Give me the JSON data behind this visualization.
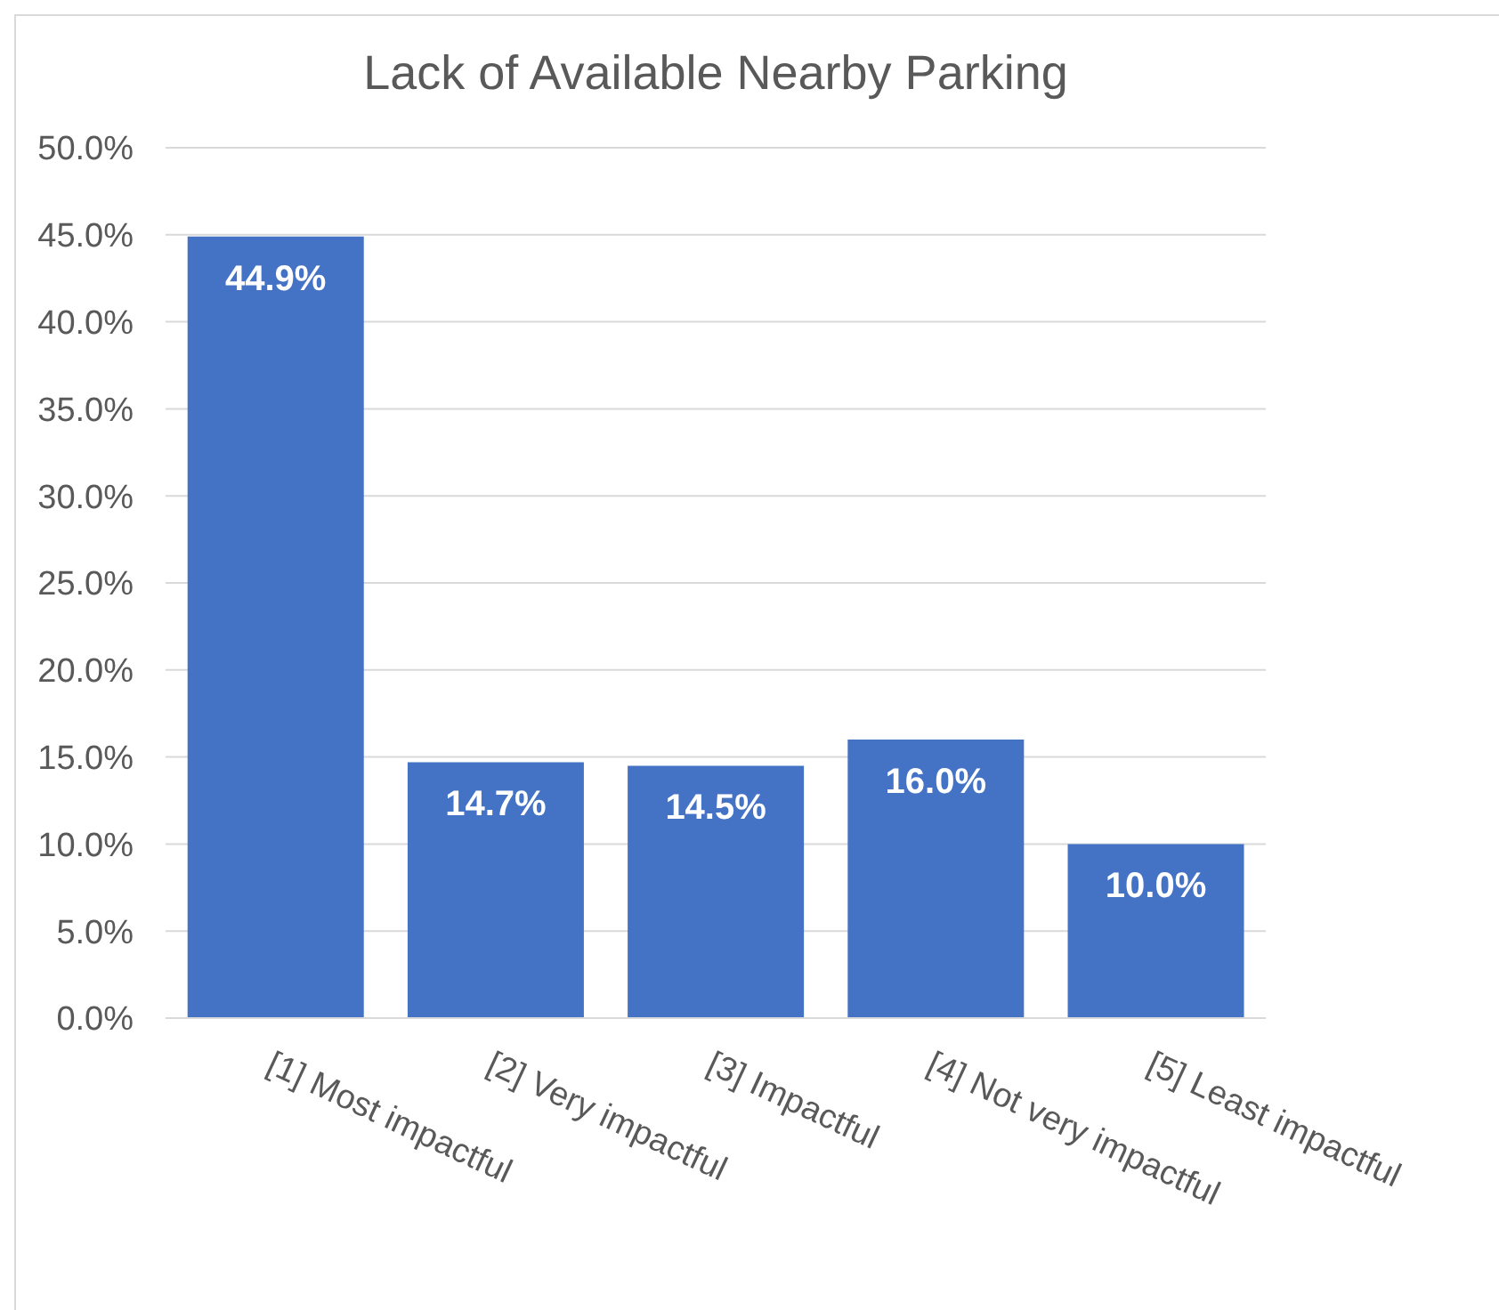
{
  "chart_data": {
    "type": "bar",
    "title": "Lack of Available Nearby Parking",
    "categories": [
      "[1] Most impactful",
      "[2] Very impactful",
      "[3] Impactful",
      "[4] Not very impactful",
      "[5] Least impactful"
    ],
    "values": [
      44.9,
      14.7,
      14.5,
      16.0,
      10.0
    ],
    "value_labels": [
      "44.9%",
      "14.7%",
      "14.5%",
      "16.0%",
      "10.0%"
    ],
    "color": "#4472c4",
    "ylim": [
      0,
      50
    ],
    "yticks": [
      {
        "value": 0,
        "label": "0.0%"
      },
      {
        "value": 5,
        "label": "5.0%"
      },
      {
        "value": 10,
        "label": "10.0%"
      },
      {
        "value": 15,
        "label": "15.0%"
      },
      {
        "value": 20,
        "label": "20.0%"
      },
      {
        "value": 25,
        "label": "25.0%"
      },
      {
        "value": 30,
        "label": "30.0%"
      },
      {
        "value": 35,
        "label": "35.0%"
      },
      {
        "value": 40,
        "label": "40.0%"
      },
      {
        "value": 45,
        "label": "45.0%"
      },
      {
        "value": 50,
        "label": "50.0%"
      }
    ],
    "grid": "y"
  }
}
